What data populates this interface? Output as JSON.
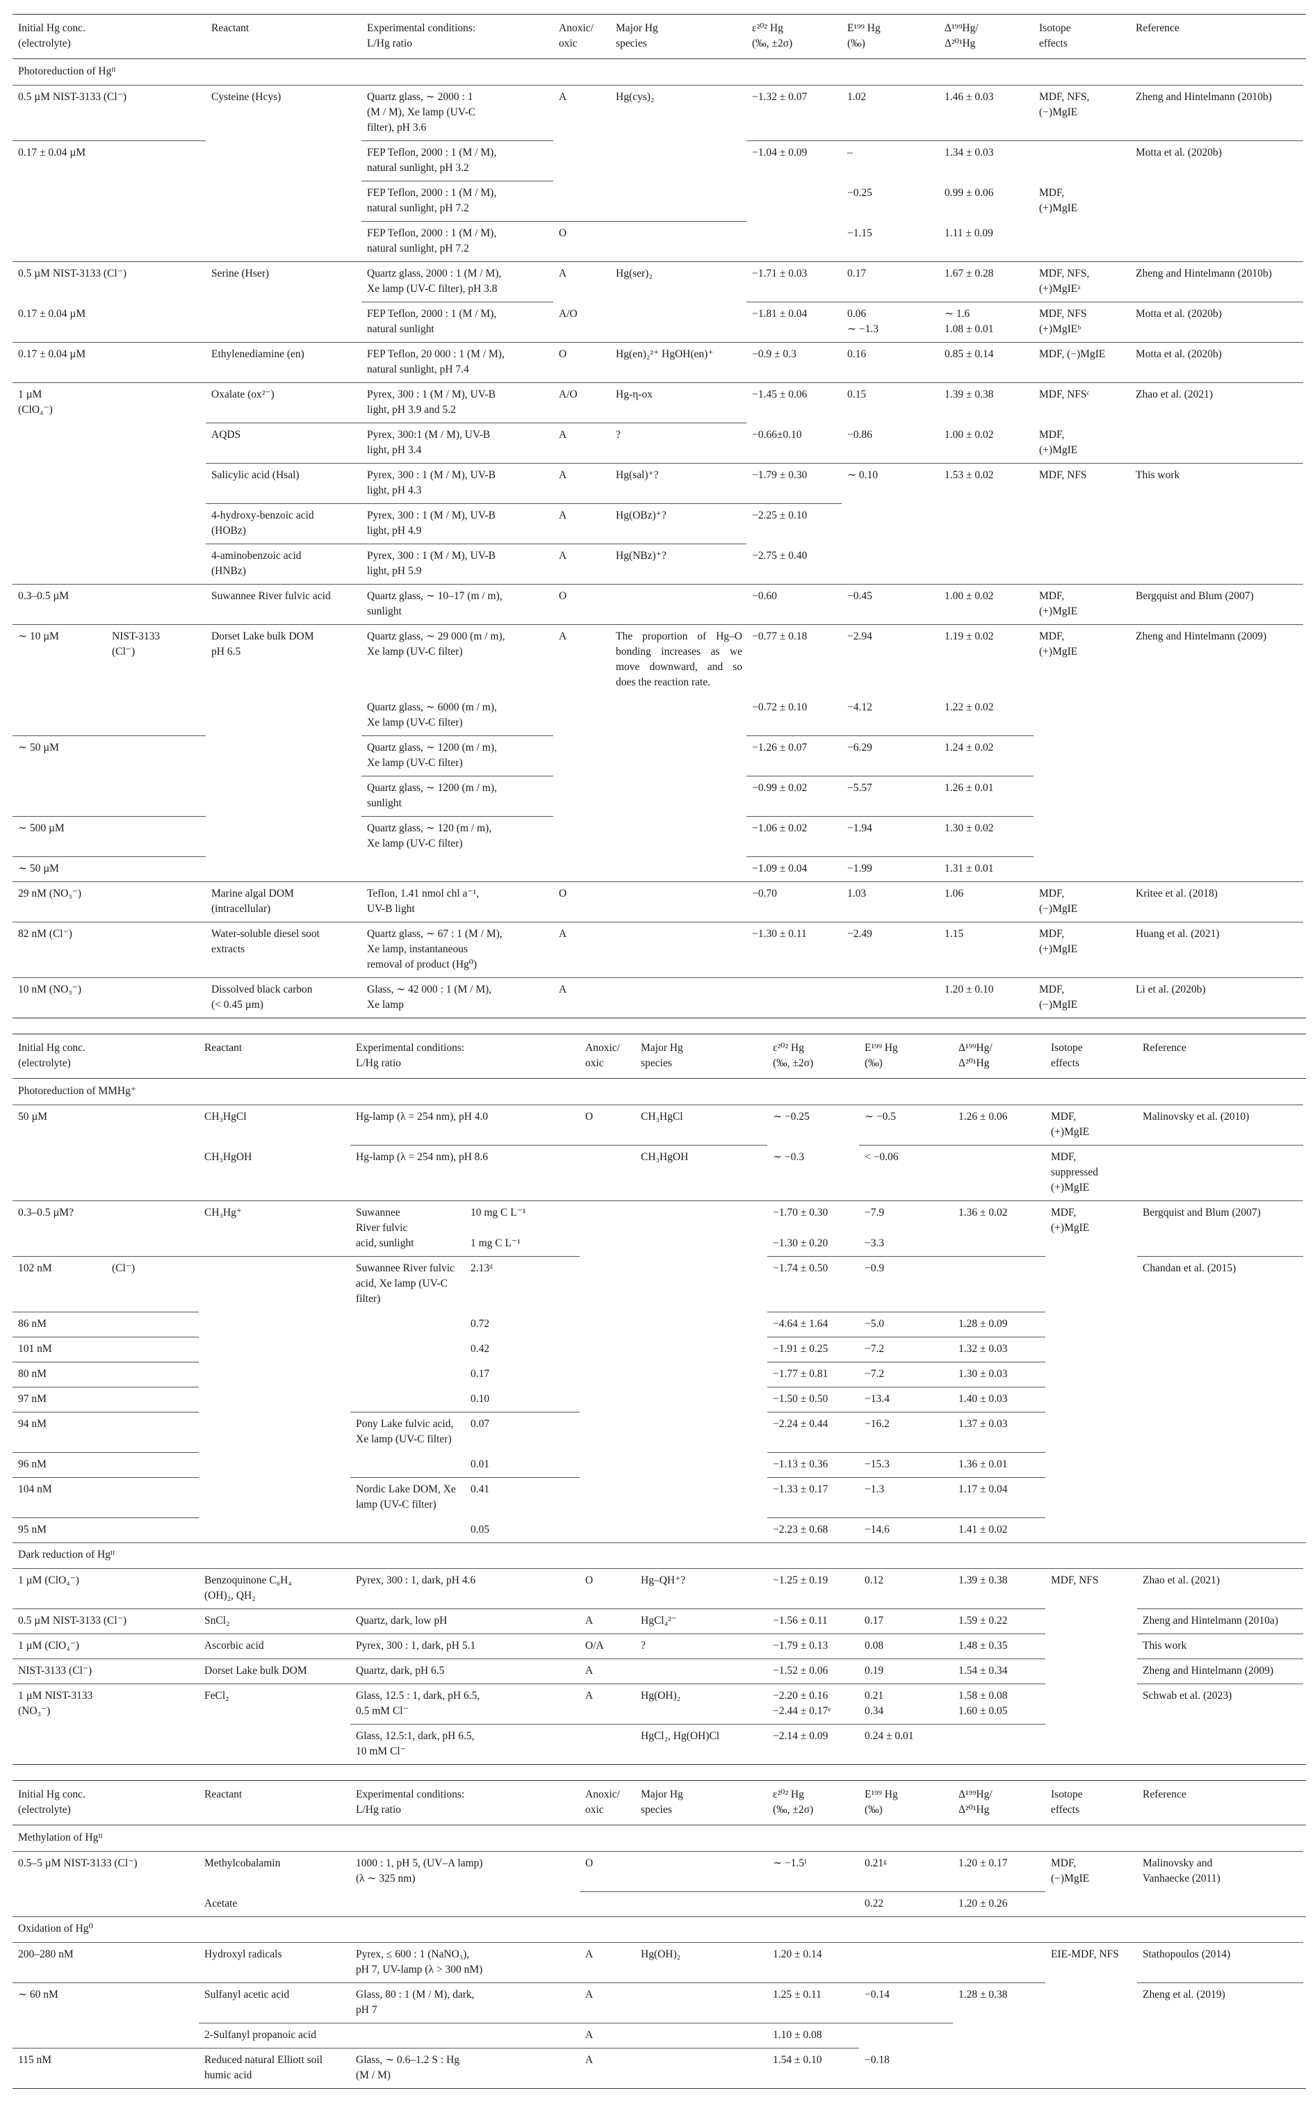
{
  "header": [
    "Initial Hg conc.\n(electrolyte)",
    "Reactant",
    "Experimental conditions:\nL/Hg ratio",
    "Anoxic/\noxic",
    "Major Hg\nspecies",
    "ε²⁰² Hg\n(‰, ±2σ)",
    "E¹⁹⁹ Hg\n(‰)",
    "Δ¹⁹⁹Hg/\nΔ²⁰¹Hg",
    "Isotope\neffects",
    "Reference"
  ],
  "tables": [
    {
      "rows": [
        {
          "section": "Photoreduction of Hgᴵᴵ"
        },
        {
          "c": "0.5 µM NIST-3133 (Cl⁻)",
          "r": "Cysteine (Hcys)",
          "x": "Quartz glass, ∼ 2000 : 1\n(M / M), Xe lamp (UV-C\nfilter), pH 3.6",
          "a": "A",
          "s": "Hg(cys)₂",
          "e2": "−1.32 ± 0.07",
          "e1": "1.02",
          "d": "1.46 ± 0.03",
          "i": "MDF, NFS,\n(−)MgIE",
          "ref": "Zheng and Hintelmann (2010b)"
        },
        {
          "c": "0.17 ± 0.04 µM",
          "x": "FEP Teflon, 2000 : 1 (M / M),\nnatural sunlight, pH 3.2",
          "e2": "−1.04 ± 0.09",
          "e1": "–",
          "d": "1.34 ± 0.03",
          "ref": "Motta et al. (2020b)"
        },
        {
          "x": "FEP Teflon, 2000 : 1 (M / M),\nnatural sunlight, pH 7.2",
          "e1": "−0.25",
          "d": "0.99 ± 0.06",
          "i": "MDF,\n(+)MgIE"
        },
        {
          "x": "FEP Teflon, 2000 : 1 (M / M),\nnatural sunlight, pH 7.2",
          "a": "O",
          "e1": "−1.15",
          "d": "1.11 ± 0.09"
        },
        {
          "c": "0.5 µM NIST-3133 (Cl⁻)",
          "r": "Serine (Hser)",
          "x": "Quartz glass, 2000 : 1 (M / M),\nXe lamp (UV-C filter), pH 3.8",
          "a": "A",
          "s": "Hg(ser)₂",
          "e2": "−1.71 ± 0.03",
          "e1": "0.17",
          "d": "1.67 ± 0.28",
          "i": "MDF, NFS,\n(+)MgIEᵃ",
          "ref": "Zheng and Hintelmann (2010b)"
        },
        {
          "c": "0.17 ± 0.04 µM",
          "x": "FEP Teflon, 2000 : 1 (M / M),\nnatural sunlight",
          "a": "A/O",
          "e2": "−1.81 ± 0.04",
          "e1": "0.06\n∼ −1.3",
          "d": "∼ 1.6\n1.08 ± 0.01",
          "i": "MDF, NFS\n(+)MgIEᵇ",
          "ref": "Motta et al. (2020b)"
        },
        {
          "c": "0.17 ± 0.04 µM",
          "r": "Ethylenediamine (en)",
          "x": "FEP Teflon, 20 000 : 1 (M / M),\nnatural sunlight, pH 7.4",
          "a": "O",
          "s": "Hg(en)₂²⁺ HgOH(en)⁺",
          "e2": "−0.9 ± 0.3",
          "e1": "0.16",
          "d": "0.85 ± 0.14",
          "i": "MDF, (−)MgIE",
          "ref": "Motta et al. (2020b)"
        },
        {
          "c": "1 µM\n(ClO₄⁻)",
          "r": "Oxalate (ox²⁻)",
          "x": "Pyrex, 300 : 1 (M / M), UV-B\nlight, pH 3.9 and 5.2",
          "a": "A/O",
          "s": "Hg-η-ox",
          "e2": "−1.45 ± 0.06",
          "e1": "0.15",
          "d": "1.39 ± 0.38",
          "i": "MDF, NFSᶜ",
          "ref": "Zhao et al. (2021)"
        },
        {
          "r": "AQDS",
          "x": "Pyrex, 300:1 (M / M), UV-B\nlight, pH 3.4",
          "a": "A",
          "s": "?",
          "e2": "−0.66±0.10",
          "e1": "−0.86",
          "d": "1.00 ± 0.02",
          "i": "MDF,\n(+)MgIE"
        },
        {
          "r": "Salicylic acid (Hsal)",
          "x": "Pyrex, 300 : 1 (M / M), UV-B\nlight, pH 4.3",
          "a": "A",
          "s": "Hg(sal)⁺?",
          "e2": "−1.79 ± 0.30",
          "e1": "∼ 0.10",
          "d": "1.53 ± 0.02",
          "i": "MDF, NFS",
          "ref": "This work"
        },
        {
          "r": "4-hydroxy-benzoic acid\n(HOBz)",
          "x": "Pyrex, 300 : 1 (M / M), UV-B\nlight, pH 4.9",
          "a": "A",
          "s": "Hg(OBz)⁺?",
          "e2": "−2.25 ± 0.10"
        },
        {
          "r": "4-aminobenzoic acid\n(HNBz)",
          "x": "Pyrex, 300 : 1 (M / M), UV-B\nlight, pH 5.9",
          "a": "A",
          "s": "Hg(NBz)⁺?",
          "e2": "−2.75 ± 0.40"
        },
        {
          "c": "0.3–0.5 µM",
          "r": "Suwannee River fulvic acid",
          "x": "Quartz glass, ∼ 10–17 (m / m),\nsunlight",
          "a": "O",
          "e2": "−0.60",
          "e1": "−0.45",
          "d": "1.00 ± 0.02",
          "i": "MDF,\n(+)MgIE",
          "ref": "Bergquist and Blum (2007)"
        },
        {
          "c": "∼ 10 µM",
          "el": "NIST-3133\n(Cl⁻)",
          "r": "Dorset Lake bulk DOM\npH 6.5",
          "x": "Quartz glass, ∼ 29 000 (m / m),\nXe lamp (UV-C filter)",
          "a": "A",
          "s": "The proportion of Hg–O bonding increases as we move downward, and so does the reaction rate.",
          "e2": "−0.77 ± 0.18",
          "e1": "−2.94",
          "d": "1.19 ± 0.02",
          "i": "MDF,\n(+)MgIE",
          "ref": "Zheng and Hintelmann (2009)"
        },
        {
          "x": "Quartz glass, ∼ 6000 (m / m),\nXe lamp (UV-C filter)",
          "e2": "−0.72 ± 0.10",
          "e1": "−4.12",
          "d": "1.22 ± 0.02"
        },
        {
          "c": "∼ 50 µM",
          "x": "Quartz glass, ∼ 1200 (m / m),\nXe lamp (UV-C filter)",
          "e2": "−1.26 ± 0.07",
          "e1": "−6.29",
          "d": "1.24 ± 0.02"
        },
        {
          "x": "Quartz glass, ∼ 1200 (m / m),\nsunlight",
          "e2": "−0.99 ± 0.02",
          "e1": "−5.57",
          "d": "1.26 ± 0.01"
        },
        {
          "c": "∼ 500 µM",
          "x": "Quartz glass, ∼ 120 (m / m),\nXe lamp (UV-C filter)",
          "e2": "−1.06 ± 0.02",
          "e1": "−1.94",
          "d": "1.30 ± 0.02"
        },
        {
          "c": "∼ 50 µM",
          "e2": "−1.09 ± 0.04",
          "e1": "−1.99",
          "d": "1.31 ± 0.01"
        },
        {
          "c": "29 nM (NO₃⁻)",
          "r": "Marine algal DOM\n(intracellular)",
          "x": "Teflon, 1.41 nmol chl a⁻¹,\nUV-B light",
          "a": "O",
          "e2": "−0.70",
          "e1": "1.03",
          "d": "1.06",
          "i": "MDF,\n(−)MgIE",
          "ref": "Kritee et al. (2018)"
        },
        {
          "c": "82 nM (Cl⁻)",
          "r": "Water-soluble diesel soot\nextracts",
          "x": "Quartz glass, ∼ 67 : 1 (M / M),\nXe lamp, instantaneous\nremoval of product (Hg⁰)",
          "a": "A",
          "e2": "−1.30 ± 0.11",
          "e1": "−2.49",
          "d": "1.15",
          "i": "MDF,\n(+)MgIE",
          "ref": "Huang et al. (2021)"
        },
        {
          "c": "10 nM (NO₃⁻)",
          "r": "Dissolved black carbon\n(< 0.45 µm)",
          "x": "Glass, ∼ 42 000 : 1 (M / M),\nXe lamp",
          "a": "A",
          "d": "1.20 ± 0.10",
          "i": "MDF,\n(−)MgIE",
          "ref": "Li et al. (2020b)"
        }
      ]
    },
    {
      "rows": [
        {
          "section": "Photoreduction of MMHg⁺"
        },
        {
          "c": "50 µM",
          "r": "CH₃HgCl",
          "x": "Hg-lamp (λ = 254 nm), pH 4.0",
          "a": "O",
          "s": "CH₃HgCl",
          "e2": "∼ −0.25",
          "e1": "∼ −0.5",
          "d": "1.26 ± 0.06",
          "i": "MDF,\n(+)MgIE",
          "ref": "Malinovsky et al. (2010)"
        },
        {
          "r": "CH₃HgOH",
          "x": "Hg-lamp (λ = 254 nm), pH 8.6",
          "s": "CH₃HgOH",
          "e2": "∼ −0.3",
          "e1": "< −0.06",
          "i": "MDF,\nsuppressed\n(+)MgIE"
        },
        {
          "c": "0.3–0.5 µM?",
          "r": "CH₃Hg⁺",
          "x": "Suwannee\nRiver fulvic\nacid, sunlight",
          "l": "10 mg C L⁻¹\n\n1 mg C L⁻¹",
          "e2": "−1.70 ± 0.30\n\n−1.30 ± 0.20",
          "e1": "−7.9\n\n−3.3",
          "d": "1.36 ± 0.02",
          "i": "MDF,\n(+)MgIE",
          "ref": "Bergquist and Blum (2007)"
        },
        {
          "c": "102 nM",
          "el": "(Cl⁻)",
          "x": "Suwannee River fulvic\nacid, Xe lamp (UV-C\nfilter)",
          "l": "2.13ᵈ",
          "e2": "−1.74 ± 0.50",
          "e1": "−0.9",
          "ref": "Chandan et al. (2015)"
        },
        {
          "c": "86 nM",
          "l": "0.72",
          "e2": "−4.64 ± 1.64",
          "e1": "−5.0",
          "d": "1.28 ± 0.09"
        },
        {
          "c": "101 nM",
          "l": "0.42",
          "e2": "−1.91 ± 0.25",
          "e1": "−7.2",
          "d": "1.32 ± 0.03"
        },
        {
          "c": "80 nM",
          "l": "0.17",
          "e2": "−1.77 ± 0.81",
          "e1": "−7.2",
          "d": "1.30 ± 0.03"
        },
        {
          "c": "97 nM",
          "l": "0.10",
          "e2": "−1.50 ± 0.50",
          "e1": "−13.4",
          "d": "1.40 ± 0.03"
        },
        {
          "c": "94 nM",
          "x": "Pony Lake fulvic acid,\nXe lamp (UV-C filter)",
          "l": "0.07",
          "e2": "−2.24 ± 0.44",
          "e1": "−16.2",
          "d": "1.37 ± 0.03"
        },
        {
          "c": "96 nM",
          "l": "0.01",
          "e2": "−1.13 ± 0.36",
          "e1": "−15.3",
          "d": "1.36 ± 0.01"
        },
        {
          "c": "104 nM",
          "x": "Nordic Lake DOM, Xe\nlamp (UV-C filter)",
          "l": "0.41",
          "e2": "−1.33 ± 0.17",
          "e1": "−1.3",
          "d": "1.17 ± 0.04"
        },
        {
          "c": "95 nM",
          "l": "0.05",
          "e2": "−2.23 ± 0.68",
          "e1": "−14.6",
          "d": "1.41 ± 0.02"
        },
        {
          "section": "Dark reduction of Hgᴵᴵ"
        },
        {
          "c": "1 µM (ClO₄⁻)",
          "r": "Benzoquinone C₆H₄\n(OH)₂, QH₂",
          "x": "Pyrex, 300 : 1, dark, pH 4.6",
          "a": "O",
          "s": "Hg–QH⁺?",
          "e2": "−1.25 ± 0.19",
          "e1": "0.12",
          "d": "1.39 ± 0.38",
          "i": "MDF, NFS",
          "ref": "Zhao et al. (2021)"
        },
        {
          "c": "0.5 µM NIST-3133 (Cl⁻)",
          "r": "SnCl₂",
          "x": "Quartz, dark, low pH",
          "a": "A",
          "s": "HgCl₄²⁻",
          "e2": "−1.56 ± 0.11",
          "e1": "0.17",
          "d": "1.59 ± 0.22",
          "ref": "Zheng and Hintelmann (2010a)"
        },
        {
          "c": "1 µM (ClO₄⁻)",
          "r": "Ascorbic acid",
          "x": "Pyrex, 300 : 1, dark, pH 5.1",
          "a": "O/A",
          "s": "?",
          "e2": "−1.79 ± 0.13",
          "e1": "0.08",
          "d": "1.48 ± 0.35",
          "ref": "This work"
        },
        {
          "c": "NIST-3133 (Cl⁻)",
          "r": "Dorset Lake bulk DOM",
          "x": "Quartz, dark, pH 6.5",
          "a": "A",
          "e2": "−1.52 ± 0.06",
          "e1": "0.19",
          "d": "1.54 ± 0.34",
          "ref": "Zheng and Hintelmann (2009)"
        },
        {
          "c": "1 µM NIST-3133\n(NO₃⁻)",
          "r": "FeCl₂",
          "x": "Glass, 12.5 : 1, dark, pH 6.5,\n0.5 mM Cl⁻",
          "a": "A",
          "s": "Hg(OH)₂",
          "e2": "−2.20 ± 0.16\n−2.44 ± 0.17ᵉ",
          "e1": "0.21\n0.34",
          "d": "1.58 ± 0.08\n1.60 ± 0.05",
          "ref": "Schwab et al. (2023)"
        },
        {
          "x": "Glass, 12.5:1, dark, pH 6.5,\n10 mM Cl⁻",
          "s": "HgCl₂, Hg(OH)Cl",
          "e2": "−2.14 ± 0.09",
          "e1": "0.24 ± 0.01"
        }
      ]
    },
    {
      "rows": [
        {
          "section": "Methylation of Hgᴵᴵ"
        },
        {
          "c": "0.5–5 µM NIST-3133 (Cl⁻)",
          "r": "Methylcobalamin",
          "x": "1000 : 1, pH 5, (UV–A lamp)\n(λ ∼ 325 nm)",
          "a": "O",
          "e2": "∼ −1.5ᶠ",
          "e1": "0.21ᵍ",
          "d": "1.20 ± 0.17",
          "i": "MDF,\n(−)MgIE",
          "ref": "Malinovsky and\nVanhaecke (2011)"
        },
        {
          "r": "Acetate",
          "e1": "0.22",
          "d": "1.20 ± 0.26"
        },
        {
          "section": "Oxidation of Hg⁰"
        },
        {
          "c": "200–280 nM",
          "r": "Hydroxyl radicals",
          "x": "Pyrex, ≤ 600 : 1 (NaNO₃),\npH 7, UV-lamp (λ > 300 nM)",
          "a": "A",
          "s": "Hg(OH)₂",
          "e2": "1.20 ± 0.14",
          "i": "EIE-MDF, NFS",
          "ref": "Stathopoulos (2014)"
        },
        {
          "c": "∼ 60 nM",
          "r": "Sulfanyl acetic acid",
          "x": "Glass, 80 : 1 (M / M), dark,\npH 7",
          "a": "A",
          "e2": "1.25 ± 0.11",
          "e1": "−0.14",
          "d": "1.28 ± 0.38",
          "ref": "Zheng et al. (2019)"
        },
        {
          "r": "2-Sulfanyl propanoic acid",
          "a": "A",
          "e2": "1.10 ± 0.08"
        },
        {
          "c": "115 nM",
          "r": "Reduced natural Elliott soil\nhumic acid",
          "x": "Glass, ∼ 0.6–1.2 S : Hg\n(M / M)",
          "a": "A",
          "e2": "1.54 ± 0.10",
          "e1": "−0.18"
        }
      ]
    }
  ]
}
